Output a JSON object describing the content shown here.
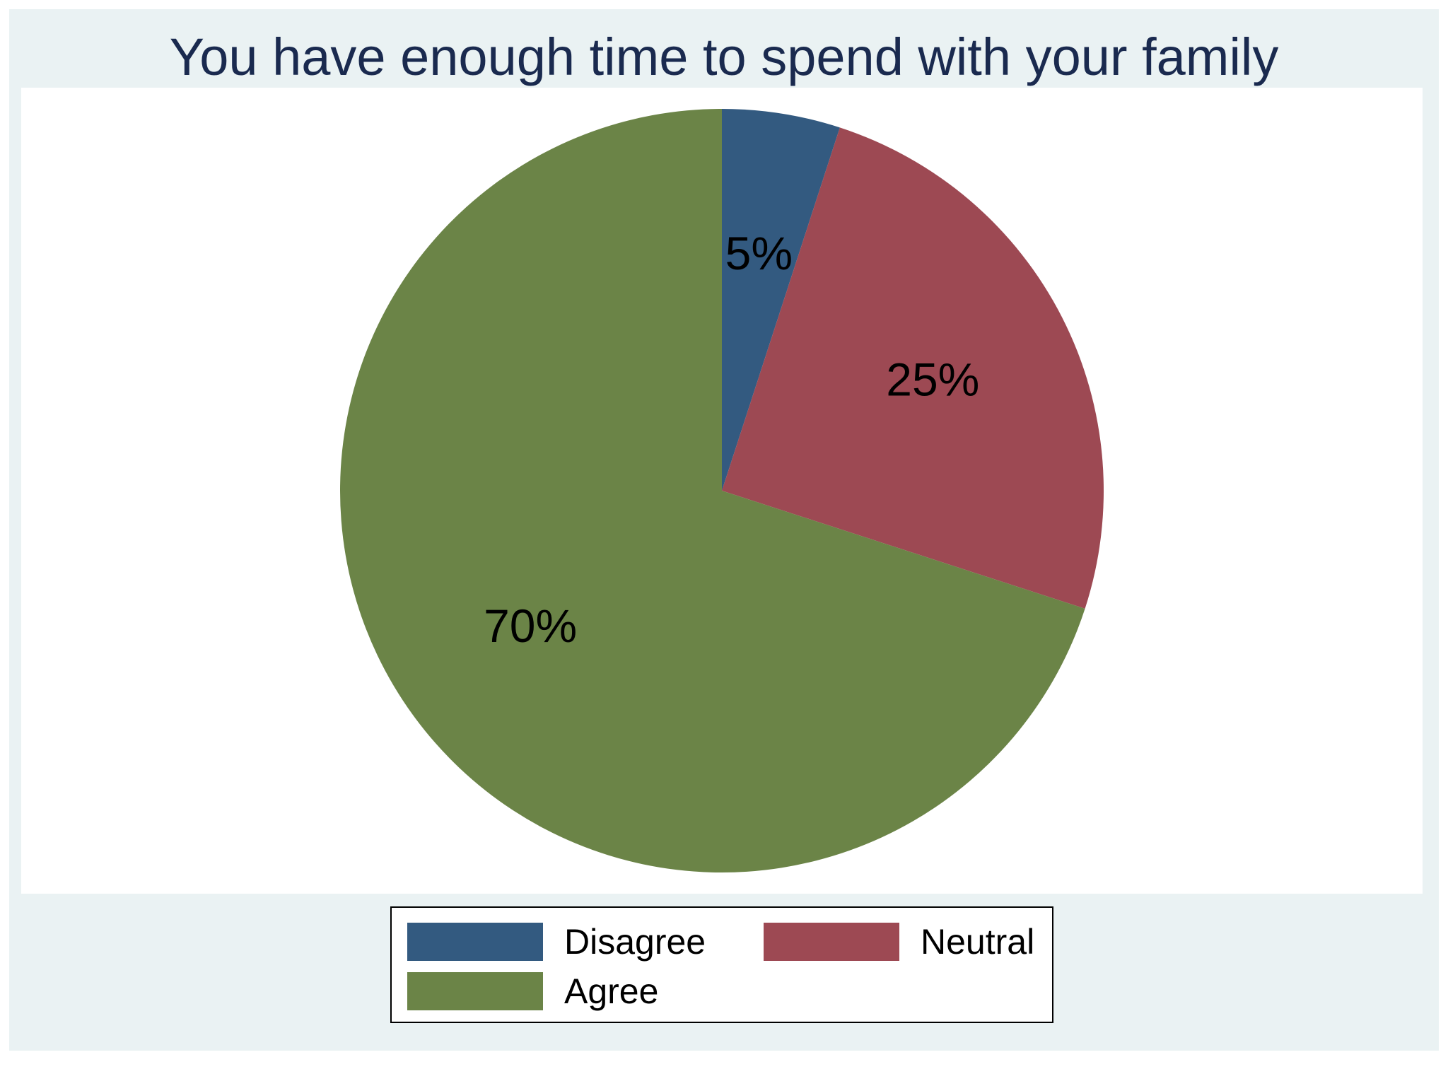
{
  "chart_data": {
    "type": "pie",
    "title": "You have enough time to spend with your family",
    "slices": [
      {
        "name": "Disagree",
        "value": 5,
        "label": "5%",
        "color": "#335a80"
      },
      {
        "name": "Neutral",
        "value": 25,
        "label": "25%",
        "color": "#9d4953"
      },
      {
        "name": "Agree",
        "value": 70,
        "label": "70%",
        "color": "#6b8447"
      }
    ],
    "legend": {
      "placement": "bottom",
      "entries": [
        "Disagree",
        "Neutral",
        "Agree"
      ]
    }
  }
}
